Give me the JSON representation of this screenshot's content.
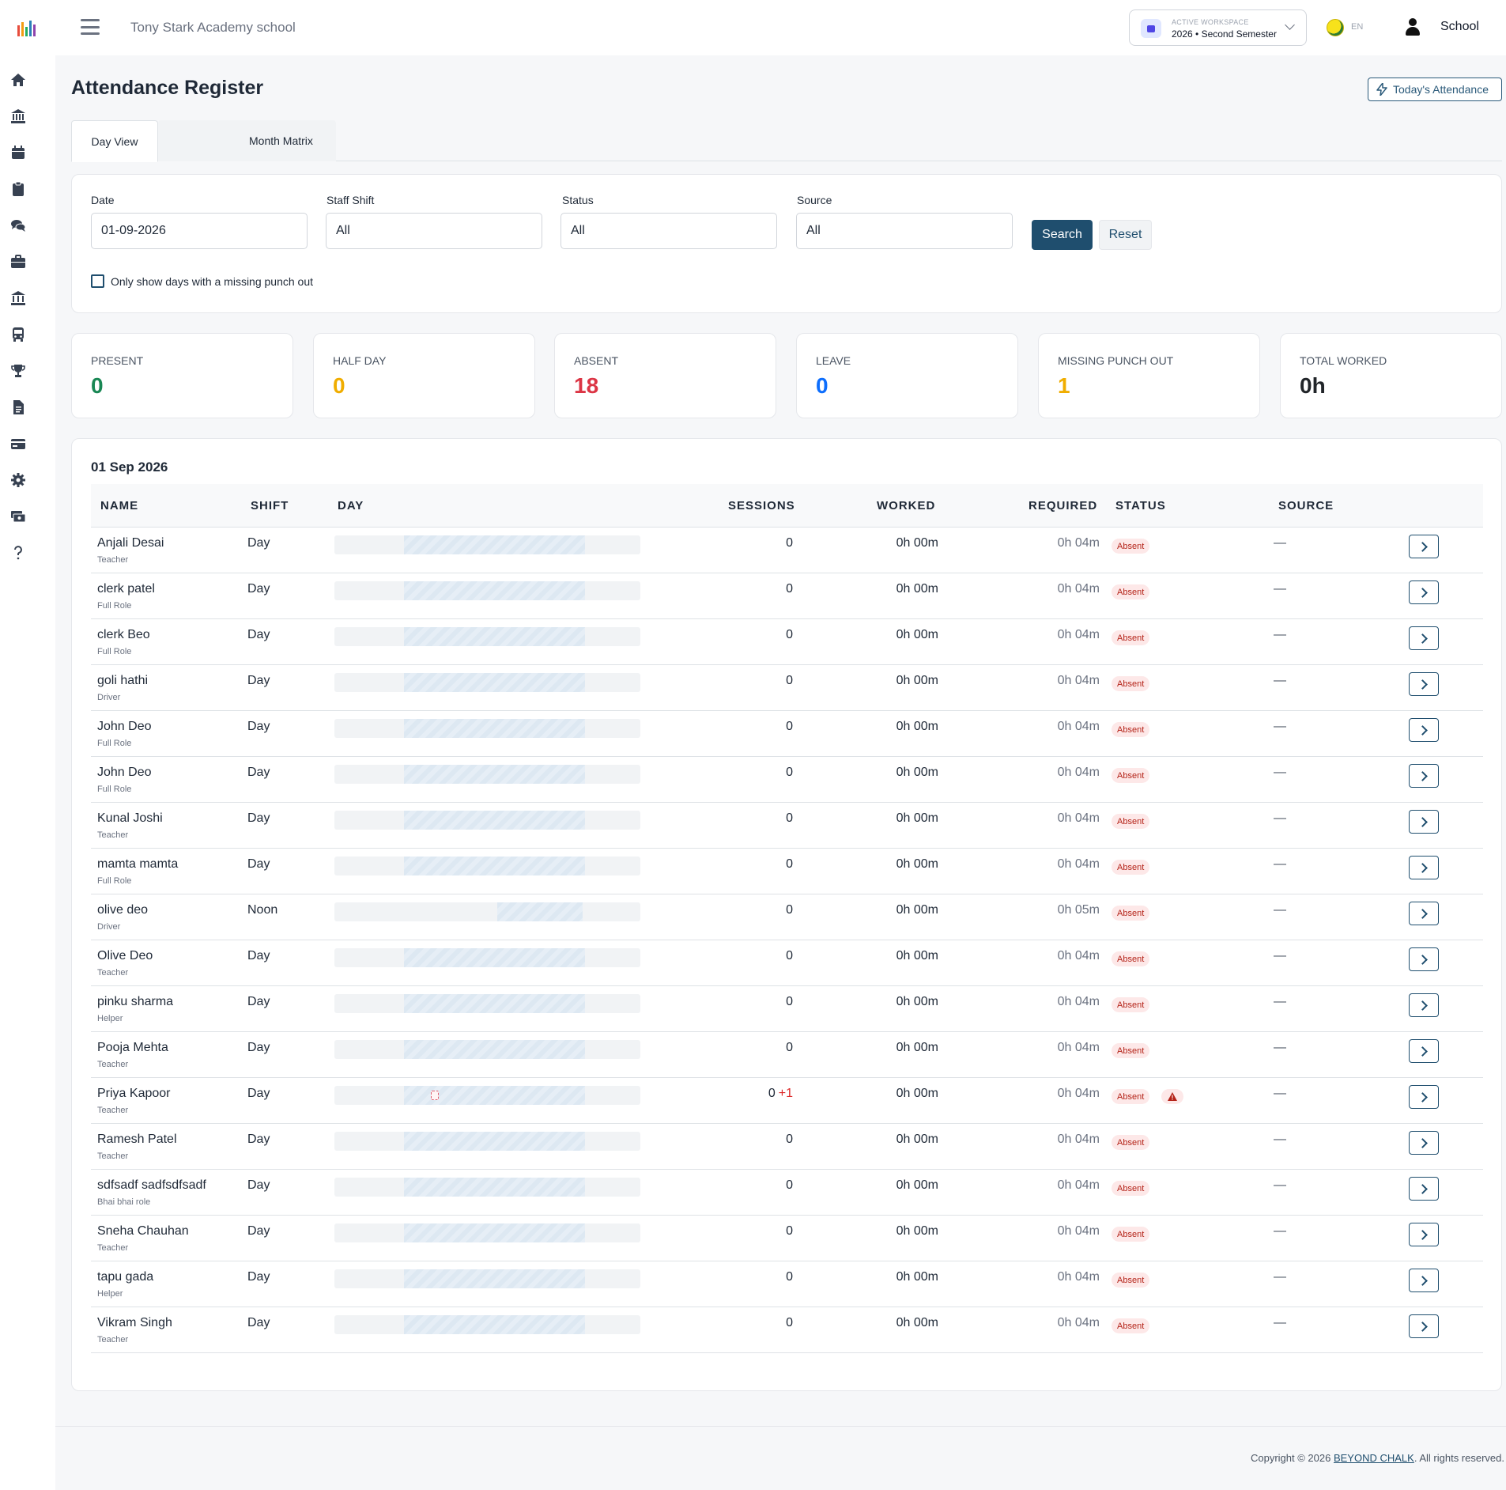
{
  "header": {
    "school_name": "Tony Stark Academy school",
    "workspace_label": "ACTIVE WORKSPACE",
    "workspace_value": "2026 • Second Semester",
    "language": "EN",
    "user_name": "School"
  },
  "sidebar": {
    "icons": [
      "home-icon",
      "institution-icon",
      "calendar-icon",
      "clipboard-icon",
      "chat-icon",
      "briefcase-icon",
      "bank-icon",
      "bus-icon",
      "trophy-icon",
      "document-icon",
      "card-icon",
      "gear-icon",
      "money-icon",
      "help-icon"
    ]
  },
  "page": {
    "title": "Attendance Register",
    "today_button": "Today's Attendance"
  },
  "tabs": [
    {
      "label": "Day View"
    },
    {
      "label": "Month Matrix"
    }
  ],
  "filters": {
    "date_label": "Date",
    "date_value": "01-09-2026",
    "shift_label": "Staff Shift",
    "shift_value": "All",
    "status_label": "Status",
    "status_value": "All",
    "source_label": "Source",
    "source_value": "All",
    "search_button": "Search",
    "reset_button": "Reset",
    "missing_punch_label": "Only show days with a missing punch out"
  },
  "stats": [
    {
      "label": "PRESENT",
      "value": "0",
      "color": "#198754"
    },
    {
      "label": "HALF DAY",
      "value": "0",
      "color": "#f0ad00"
    },
    {
      "label": "ABSENT",
      "value": "18",
      "color": "#dc3545"
    },
    {
      "label": "LEAVE",
      "value": "0",
      "color": "#0d6efd"
    },
    {
      "label": "MISSING PUNCH OUT",
      "value": "1",
      "color": "#f0ad00"
    },
    {
      "label": "TOTAL WORKED",
      "value": "0h",
      "color": "#212529"
    }
  ],
  "table": {
    "date_heading": "01 Sep 2026",
    "columns": {
      "name": "NAME",
      "shift": "SHIFT",
      "day": "DAY",
      "sessions": "SESSIONS",
      "worked": "WORKED",
      "required": "REQUIRED",
      "status": "STATUS",
      "source": "SOURCE"
    },
    "rows": [
      {
        "name": "Anjali Desai",
        "role": "Teacher",
        "shift": "Day",
        "sessions": "0",
        "extra": "",
        "worked": "0h 00m",
        "required": "0h 04m",
        "status": "Absent",
        "warning": false,
        "source": "—"
      },
      {
        "name": "clerk patel",
        "role": "Full Role",
        "shift": "Day",
        "sessions": "0",
        "extra": "",
        "worked": "0h 00m",
        "required": "0h 04m",
        "status": "Absent",
        "warning": false,
        "source": "—"
      },
      {
        "name": "clerk Beo",
        "role": "Full Role",
        "shift": "Day",
        "sessions": "0",
        "extra": "",
        "worked": "0h 00m",
        "required": "0h 04m",
        "status": "Absent",
        "warning": false,
        "source": "—"
      },
      {
        "name": "goli hathi",
        "role": "Driver",
        "shift": "Day",
        "sessions": "0",
        "extra": "",
        "worked": "0h 00m",
        "required": "0h 04m",
        "status": "Absent",
        "warning": false,
        "source": "—"
      },
      {
        "name": "John Deo",
        "role": "Full Role",
        "shift": "Day",
        "sessions": "0",
        "extra": "",
        "worked": "0h 00m",
        "required": "0h 04m",
        "status": "Absent",
        "warning": false,
        "source": "—"
      },
      {
        "name": "John Deo",
        "role": "Full Role",
        "shift": "Day",
        "sessions": "0",
        "extra": "",
        "worked": "0h 00m",
        "required": "0h 04m",
        "status": "Absent",
        "warning": false,
        "source": "—"
      },
      {
        "name": "Kunal Joshi",
        "role": "Teacher",
        "shift": "Day",
        "sessions": "0",
        "extra": "",
        "worked": "0h 00m",
        "required": "0h 04m",
        "status": "Absent",
        "warning": false,
        "source": "—"
      },
      {
        "name": "mamta mamta",
        "role": "Full Role",
        "shift": "Day",
        "sessions": "0",
        "extra": "",
        "worked": "0h 00m",
        "required": "0h 04m",
        "status": "Absent",
        "warning": false,
        "source": "—"
      },
      {
        "name": "olive deo",
        "role": "Driver",
        "shift": "Noon",
        "sessions": "0",
        "extra": "",
        "worked": "0h 00m",
        "required": "0h 05m",
        "status": "Absent",
        "warning": false,
        "source": "—"
      },
      {
        "name": "Olive Deo",
        "role": "Teacher",
        "shift": "Day",
        "sessions": "0",
        "extra": "",
        "worked": "0h 00m",
        "required": "0h 04m",
        "status": "Absent",
        "warning": false,
        "source": "—"
      },
      {
        "name": "pinku sharma",
        "role": "Helper",
        "shift": "Day",
        "sessions": "0",
        "extra": "",
        "worked": "0h 00m",
        "required": "0h 04m",
        "status": "Absent",
        "warning": false,
        "source": "—"
      },
      {
        "name": "Pooja Mehta",
        "role": "Teacher",
        "shift": "Day",
        "sessions": "0",
        "extra": "",
        "worked": "0h 00m",
        "required": "0h 04m",
        "status": "Absent",
        "warning": false,
        "source": "—"
      },
      {
        "name": "Priya Kapoor",
        "role": "Teacher",
        "shift": "Day",
        "sessions": "0",
        "extra": "+1",
        "worked": "0h 00m",
        "required": "0h 04m",
        "status": "Absent",
        "warning": true,
        "source": "—"
      },
      {
        "name": "Ramesh Patel",
        "role": "Teacher",
        "shift": "Day",
        "sessions": "0",
        "extra": "",
        "worked": "0h 00m",
        "required": "0h 04m",
        "status": "Absent",
        "warning": false,
        "source": "—"
      },
      {
        "name": "sdfsadf sadfsdfsadf",
        "role": "Bhai bhai role",
        "shift": "Day",
        "sessions": "0",
        "extra": "",
        "worked": "0h 00m",
        "required": "0h 04m",
        "status": "Absent",
        "warning": false,
        "source": "—"
      },
      {
        "name": "Sneha Chauhan",
        "role": "Teacher",
        "shift": "Day",
        "sessions": "0",
        "extra": "",
        "worked": "0h 00m",
        "required": "0h 04m",
        "status": "Absent",
        "warning": false,
        "source": "—"
      },
      {
        "name": "tapu gada",
        "role": "Helper",
        "shift": "Day",
        "sessions": "0",
        "extra": "",
        "worked": "0h 00m",
        "required": "0h 04m",
        "status": "Absent",
        "warning": false,
        "source": "—"
      },
      {
        "name": "Vikram Singh",
        "role": "Teacher",
        "shift": "Day",
        "sessions": "0",
        "extra": "",
        "worked": "0h 00m",
        "required": "0h 04m",
        "status": "Absent",
        "warning": false,
        "source": "—"
      }
    ]
  },
  "footer": {
    "prefix": "Copyright © 2026 ",
    "link": "BEYOND CHALK",
    "suffix": ". All rights reserved."
  }
}
